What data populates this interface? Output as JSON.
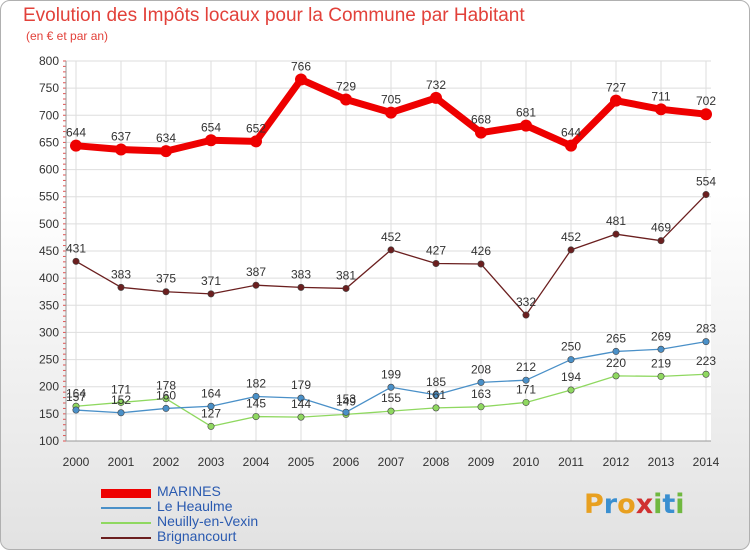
{
  "chart_data": {
    "type": "line",
    "title": "Evolution des Impôts locaux pour la Commune par Habitant",
    "subtitle": "(en € et par an)",
    "x": [
      "2000",
      "2001",
      "2002",
      "2003",
      "2004",
      "2005",
      "2006",
      "2007",
      "2008",
      "2009",
      "2010",
      "2011",
      "2012",
      "2013",
      "2014"
    ],
    "ylim": [
      100,
      800
    ],
    "yticks": [
      100,
      150,
      200,
      250,
      300,
      350,
      400,
      450,
      500,
      550,
      600,
      650,
      700,
      750,
      800
    ],
    "grid": true,
    "legend_position": "bottom-left",
    "series": [
      {
        "name": "MARINES",
        "color": "#ee0000",
        "values": [
          644,
          637,
          634,
          654,
          652,
          766,
          729,
          705,
          732,
          668,
          681,
          644,
          727,
          711,
          702
        ]
      },
      {
        "name": "Le Heaulme",
        "color": "#4a90c8",
        "values": [
          157,
          152,
          160,
          164,
          182,
          179,
          153,
          199,
          185,
          208,
          212,
          250,
          265,
          269,
          283
        ]
      },
      {
        "name": "Neuilly-en-Vexin",
        "color": "#8fd860",
        "values": [
          164,
          171,
          178,
          127,
          145,
          144,
          149,
          155,
          161,
          163,
          171,
          194,
          220,
          219,
          223
        ]
      },
      {
        "name": "Brignancourt",
        "color": "#6b1f1f",
        "values": [
          431,
          383,
          375,
          371,
          387,
          383,
          381,
          452,
          427,
          426,
          332,
          452,
          481,
          469,
          554
        ]
      }
    ]
  },
  "logo": {
    "text": "Proxiti",
    "letters": [
      "P",
      "r",
      "o",
      "x",
      "i",
      "t",
      "i"
    ]
  }
}
